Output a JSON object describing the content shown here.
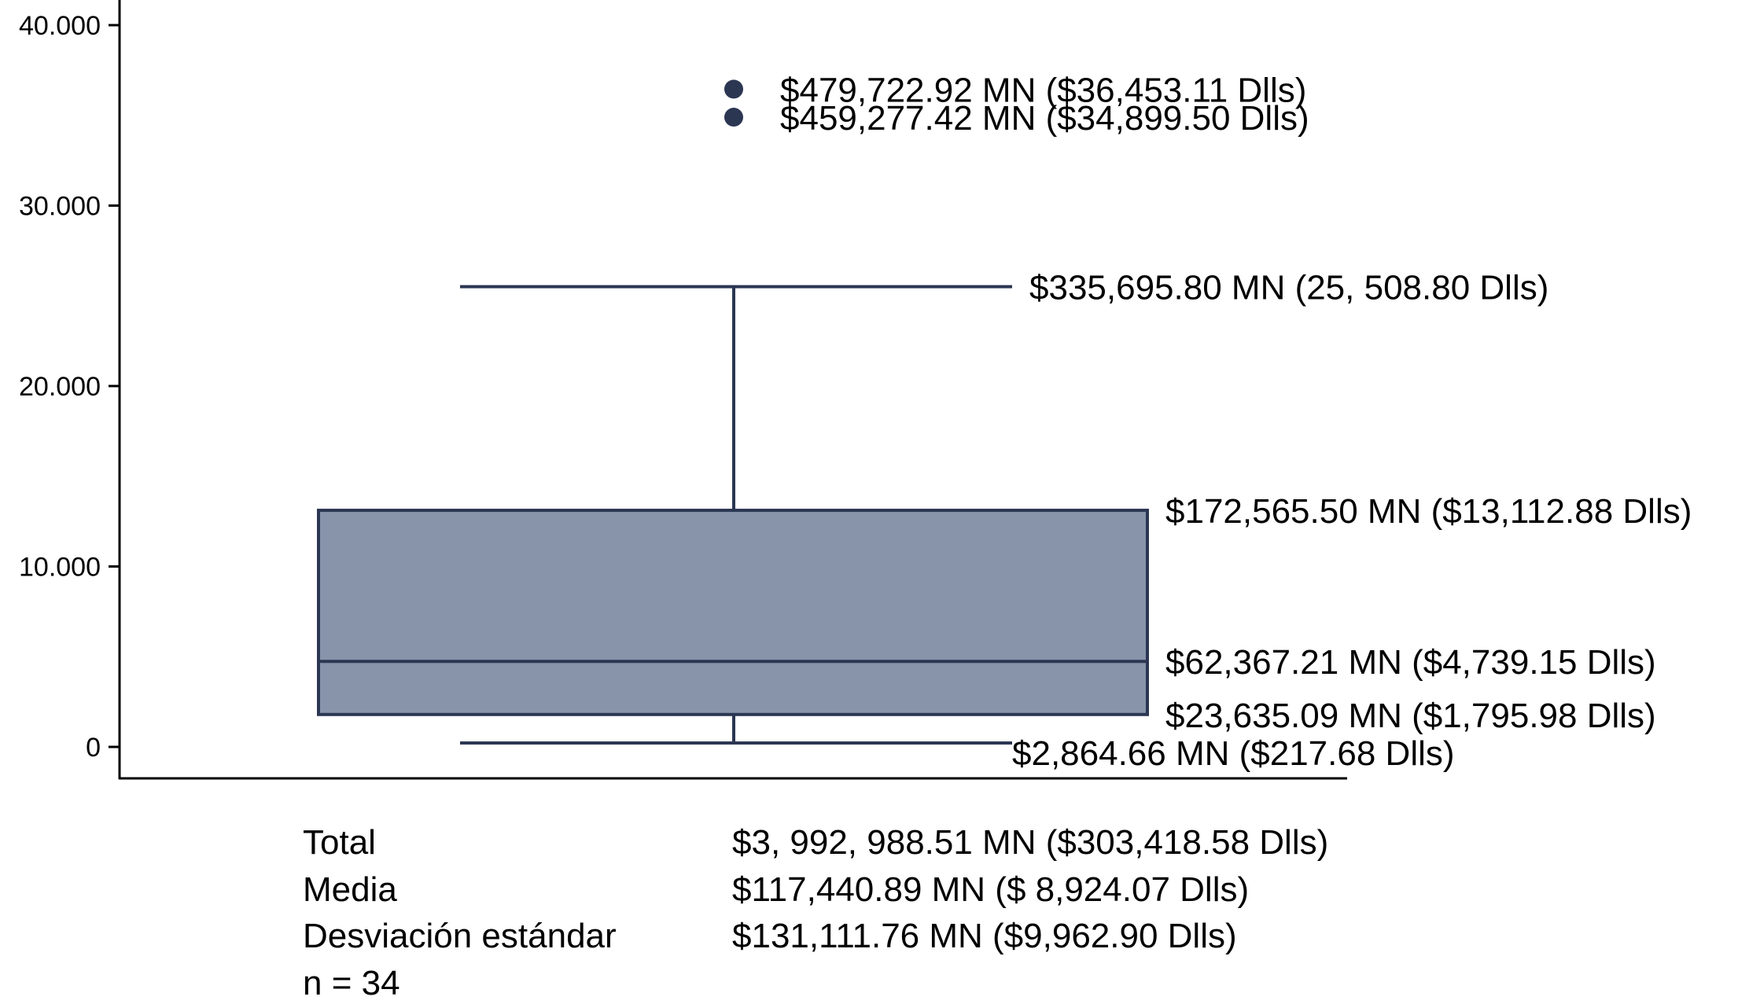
{
  "chart_data": {
    "type": "box",
    "yticks": [
      "0",
      "10.000",
      "20.000",
      "30.000",
      "40.000"
    ],
    "ytick_values": [
      0,
      10000,
      20000,
      30000,
      40000
    ],
    "ylim": [
      -1800,
      41400
    ],
    "grid": false,
    "box": {
      "whisker_low": 217.68,
      "q1": 1795.98,
      "median": 4739.15,
      "q3": 13112.88,
      "whisker_high": 25508.8,
      "outliers": [
        36453.11,
        34899.5
      ]
    },
    "annotations": [
      {
        "value": 36453.11,
        "text": "$479,722.92 MN ($36,453.11 Dlls)"
      },
      {
        "value": 34899.5,
        "text": "$459,277.42 MN ($34,899.50 Dlls)"
      },
      {
        "value": 25508.8,
        "text": "$335,695.80 MN (25, 508.80 Dlls)"
      },
      {
        "value": 13112.88,
        "text": "$172,565.50 MN ($13,112.88 Dlls)"
      },
      {
        "value": 4739.15,
        "text": "$62,367.21 MN ($4,739.15 Dlls)"
      },
      {
        "value": 1795.98,
        "text": "$23,635.09 MN ($1,795.98 Dlls)"
      },
      {
        "value": 217.68,
        "text": "$2,864.66 MN ($217.68 Dlls)"
      }
    ],
    "colors": {
      "box_fill": "#8794aa",
      "stroke": "#2b3652",
      "axis": "#000000"
    }
  },
  "summary": {
    "rows": [
      {
        "label": "Total",
        "value": "$3, 992, 988.51 MN ($303,418.58 Dlls)"
      },
      {
        "label": "Media",
        "value": "$117,440.89 MN ($ 8,924.07 Dlls)"
      },
      {
        "label": "Desviación estándar",
        "value": "$131,111.76 MN ($9,962.90 Dlls)"
      }
    ],
    "n": "n = 34"
  }
}
